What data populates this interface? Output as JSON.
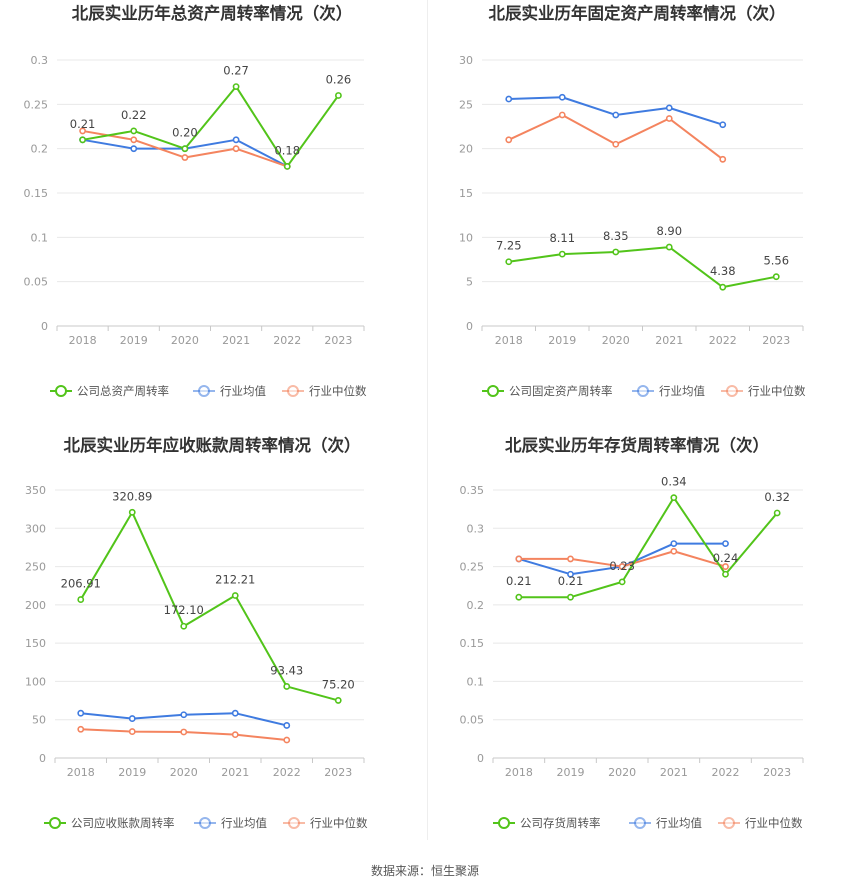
{
  "source_text": "数据来源：恒生聚源",
  "chart_data": [
    {
      "type": "line",
      "title": "北辰实业历年总资产周转率情况（次）",
      "categories": [
        "2018",
        "2019",
        "2020",
        "2021",
        "2022",
        "2023"
      ],
      "yticks": [
        "0",
        "0.05",
        "0.1",
        "0.15",
        "0.2",
        "0.25",
        "0.3"
      ],
      "ylim": [
        0,
        0.3
      ],
      "grid": true,
      "legend_position": "bottom",
      "series": [
        {
          "name": "公司总资产周转率",
          "color": "#52c41a",
          "values": [
            0.21,
            0.22,
            0.2,
            0.27,
            0.18,
            0.26
          ],
          "labels": [
            "0.21",
            "0.22",
            "0.20",
            "0.27",
            "0.18",
            "0.26"
          ]
        },
        {
          "name": "行业均值",
          "color": "#3f7be0",
          "values": [
            0.21,
            0.2,
            0.2,
            0.21,
            0.18,
            null
          ]
        },
        {
          "name": "行业中位数",
          "color": "#f4845f",
          "values": [
            0.22,
            0.21,
            0.19,
            0.2,
            0.18,
            null
          ]
        }
      ]
    },
    {
      "type": "line",
      "title": "北辰实业历年固定资产周转率情况（次）",
      "categories": [
        "2018",
        "2019",
        "2020",
        "2021",
        "2022",
        "2023"
      ],
      "yticks": [
        "0",
        "5",
        "10",
        "15",
        "20",
        "25",
        "30"
      ],
      "ylim": [
        0,
        30
      ],
      "grid": true,
      "legend_position": "bottom",
      "series": [
        {
          "name": "公司固定资产周转率",
          "color": "#52c41a",
          "values": [
            7.25,
            8.11,
            8.35,
            8.9,
            4.38,
            5.56
          ],
          "labels": [
            "7.25",
            "8.11",
            "8.35",
            "8.90",
            "4.38",
            "5.56"
          ]
        },
        {
          "name": "行业均值",
          "color": "#3f7be0",
          "values": [
            25.6,
            25.8,
            23.8,
            24.6,
            22.7,
            null
          ]
        },
        {
          "name": "行业中位数",
          "color": "#f4845f",
          "values": [
            21.0,
            23.8,
            20.5,
            23.4,
            18.8,
            null
          ]
        }
      ]
    },
    {
      "type": "line",
      "title": "北辰实业历年应收账款周转率情况（次）",
      "categories": [
        "2018",
        "2019",
        "2020",
        "2021",
        "2022",
        "2023"
      ],
      "yticks": [
        "0",
        "50",
        "100",
        "150",
        "200",
        "250",
        "300",
        "350"
      ],
      "ylim": [
        0,
        350
      ],
      "grid": true,
      "legend_position": "bottom",
      "series": [
        {
          "name": "公司应收账款周转率",
          "color": "#52c41a",
          "values": [
            206.91,
            320.89,
            172.1,
            212.21,
            93.43,
            75.2
          ],
          "labels": [
            "206.91",
            "320.89",
            "172.10",
            "212.21",
            "93.43",
            "75.20"
          ]
        },
        {
          "name": "行业均值",
          "color": "#3f7be0",
          "values": [
            58.5,
            51.5,
            56.5,
            58.5,
            42.5,
            null
          ]
        },
        {
          "name": "行业中位数",
          "color": "#f4845f",
          "values": [
            37.5,
            34.5,
            34.0,
            30.5,
            23.5,
            null
          ]
        }
      ]
    },
    {
      "type": "line",
      "title": "北辰实业历年存货周转率情况（次）",
      "categories": [
        "2018",
        "2019",
        "2020",
        "2021",
        "2022",
        "2023"
      ],
      "yticks": [
        "0",
        "0.05",
        "0.1",
        "0.15",
        "0.2",
        "0.25",
        "0.3",
        "0.35"
      ],
      "ylim": [
        0,
        0.35
      ],
      "grid": true,
      "legend_position": "bottom",
      "series": [
        {
          "name": "公司存货周转率",
          "color": "#52c41a",
          "values": [
            0.21,
            0.21,
            0.23,
            0.34,
            0.24,
            0.32
          ],
          "labels": [
            "0.21",
            "0.21",
            "0.23",
            "0.34",
            "0.24",
            "0.32"
          ]
        },
        {
          "name": "行业均值",
          "color": "#3f7be0",
          "values": [
            0.26,
            0.24,
            0.25,
            0.28,
            0.28,
            null
          ]
        },
        {
          "name": "行业中位数",
          "color": "#f4845f",
          "values": [
            0.26,
            0.26,
            0.25,
            0.27,
            0.25,
            null
          ]
        }
      ]
    }
  ]
}
